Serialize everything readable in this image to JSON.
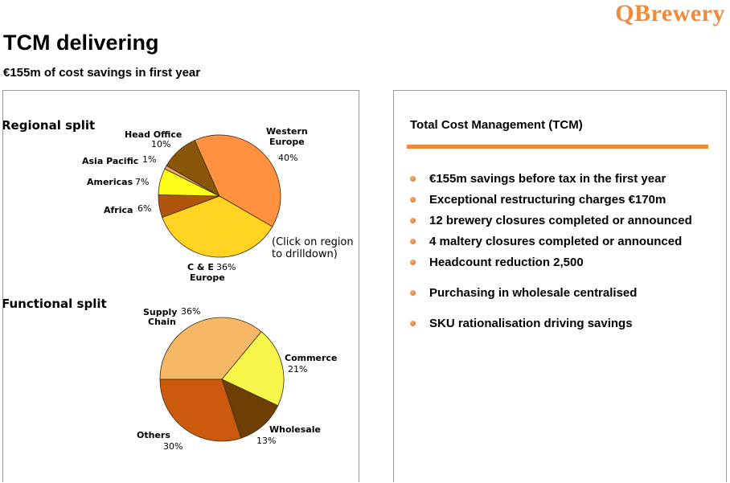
{
  "brand": "QBrewery",
  "title": "TCM delivering",
  "subtitle": "€155m of cost savings in first year",
  "right_panel": {
    "heading": "Total Cost Management (TCM)",
    "bullets": [
      "€155m savings before tax in the first year",
      "Exceptional restructuring charges €170m",
      "12 brewery closures completed or announced",
      "4 maltery closures completed or announced",
      "Headcount reduction 2,500",
      "Purchasing in wholesale centralised",
      "SKU rationalisation driving savings"
    ],
    "accent_color": "#f08a3a"
  },
  "chart_data": [
    {
      "type": "pie",
      "title": "Regional split",
      "hint": [
        "(Click on region",
        "to drilldown)"
      ],
      "slices": [
        {
          "label": [
            "Western",
            "Europe"
          ],
          "value": 40,
          "pct": "40%",
          "color": "#ff9140"
        },
        {
          "label": [
            "C & E",
            "Europe"
          ],
          "value": 36,
          "pct": "36%",
          "color": "#ffd321"
        },
        {
          "label": [
            "Africa"
          ],
          "value": 6,
          "pct": "6%",
          "color": "#b0540e"
        },
        {
          "label": [
            "Americas"
          ],
          "value": 7,
          "pct": "7%",
          "color": "#fffc1a"
        },
        {
          "label": [
            "Asia Pacific"
          ],
          "value": 1,
          "pct": "1%",
          "color": "#e9a15f"
        },
        {
          "label": [
            "Head Office"
          ],
          "value": 10,
          "pct": "10%",
          "color": "#8a570a"
        }
      ]
    },
    {
      "type": "pie",
      "title": "Functional split",
      "slices": [
        {
          "label": [
            "Supply",
            "Chain"
          ],
          "value": 36,
          "pct": "36%",
          "color": "#f7b866"
        },
        {
          "label": [
            "Commerce"
          ],
          "value": 21,
          "pct": "21%",
          "color": "#f7f54a"
        },
        {
          "label": [
            "Wholesale"
          ],
          "value": 13,
          "pct": "13%",
          "color": "#6e3f04"
        },
        {
          "label": [
            "Others"
          ],
          "value": 30,
          "pct": "30%",
          "color": "#cc5a0c"
        }
      ]
    }
  ]
}
